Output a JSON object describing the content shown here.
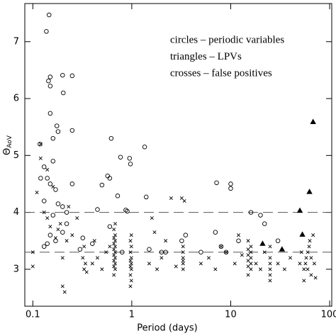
{
  "chart_data": {
    "type": "scatter",
    "xlabel": "Period (days)",
    "ylabel": "Θ",
    "ylabel_sub": "AoV",
    "xscale": "log",
    "xlim": [
      0.083,
      105
    ],
    "ylim": [
      2.35,
      7.67
    ],
    "xticks": [
      0.1,
      1,
      10,
      100
    ],
    "yticks": [
      3,
      4,
      5,
      6,
      7
    ],
    "hlines": [
      4.0,
      3.3
    ],
    "legend": "upper right",
    "series": [
      {
        "name": "circles – periodic variables",
        "color": "#000000",
        "marker": "circle",
        "x": [
          0.146,
          0.137,
          0.144,
          0.15,
          0.2,
          0.25,
          0.203,
          0.15,
          0.15,
          0.175,
          0.18,
          0.25,
          0.62,
          0.77,
          0.57,
          0.6,
          0.5,
          0.95,
          0.97,
          1.35,
          0.72,
          0.45,
          0.87,
          0.9,
          1.4,
          7.2,
          10,
          10,
          0.118,
          0.13,
          0.14,
          0.12,
          0.15,
          0.16,
          0.16,
          0.17,
          0.13,
          0.2,
          0.22,
          0.18,
          0.25,
          0.16,
          0.15,
          0.14,
          0.13,
          0.17,
          0.2,
          0.22,
          0.3,
          0.32,
          0.4,
          0.6,
          0.8,
          1.5,
          2,
          2.2,
          3.5,
          3.2,
          5,
          7,
          8,
          12,
          16,
          20,
          22,
          30,
          9
        ],
        "values": [
          7.47,
          7.18,
          6.31,
          6.38,
          6.41,
          6.4,
          6.1,
          6.22,
          5.74,
          5.52,
          5.42,
          5.44,
          5.3,
          4.97,
          4.64,
          4.6,
          4.48,
          4.95,
          4.85,
          5.15,
          4.29,
          4.05,
          4.04,
          4.02,
          4.27,
          4.52,
          4.5,
          4.42,
          5.2,
          4.8,
          4.6,
          4.6,
          4.5,
          4.9,
          5.3,
          4.4,
          4.2,
          4.1,
          4.0,
          4.15,
          4.5,
          3.95,
          3.6,
          3.45,
          3.4,
          3.5,
          3.65,
          3.8,
          3.35,
          3.55,
          3.45,
          3.75,
          3.3,
          3.35,
          3.3,
          3.3,
          3.6,
          3.5,
          3.3,
          3.65,
          3.4,
          3.5,
          4.0,
          3.95,
          3.8,
          3.5,
          3.3
        ]
      },
      {
        "name": "triangles – LPVs",
        "color": "#000000",
        "marker": "triangle",
        "x": [
          68,
          62.5,
          50,
          53,
          21,
          33
        ],
        "values": [
          5.59,
          4.36,
          4.03,
          3.61,
          3.45,
          3.35
        ]
      },
      {
        "name": "crosses – false positives",
        "color": "#000000",
        "marker": "cross",
        "x": [
          0.12,
          0.11,
          0.12,
          0.13,
          0.1,
          0.1,
          0.14,
          0.15,
          0.17,
          0.18,
          0.19,
          0.2,
          0.21,
          0.2,
          0.22,
          0.16,
          0.14,
          0.23,
          0.25,
          0.28,
          0.32,
          0.33,
          0.34,
          0.35,
          0.33,
          0.4,
          0.45,
          0.42,
          0.5,
          0.55,
          0.6,
          0.66,
          0.68,
          0.66,
          0.68,
          0.66,
          0.68,
          0.66,
          0.68,
          0.66,
          0.68,
          0.66,
          0.68,
          0.66,
          0.68,
          0.66,
          0.68,
          0.97,
          0.99,
          0.97,
          0.99,
          0.97,
          0.99,
          0.97,
          0.99,
          0.97,
          0.99,
          0.97,
          0.99,
          1.5,
          1.6,
          1.8,
          2.0,
          2.5,
          2.2,
          1.7,
          2.8,
          3.3,
          3.3,
          3.3,
          3.3,
          3.3,
          3.3,
          3.2,
          3.4,
          5,
          6,
          7,
          8,
          9,
          11,
          12,
          13,
          15,
          16,
          15,
          16,
          15,
          16,
          15,
          16,
          15,
          16,
          15,
          18,
          20,
          22,
          25,
          25,
          25,
          25,
          25,
          25,
          30,
          35,
          40,
          55,
          55,
          57,
          58,
          60,
          60,
          62,
          63,
          65,
          65,
          68,
          70,
          72,
          52,
          50
        ],
        "values": [
          5.2,
          4.35,
          4.95,
          4.0,
          3.05,
          3.3,
          3.9,
          3.75,
          3.55,
          3.7,
          3.8,
          3.2,
          2.6,
          2.7,
          3.5,
          4.45,
          4.75,
          4.1,
          3.6,
          3.9,
          3.2,
          3.0,
          3.1,
          2.95,
          3.4,
          3.1,
          3.2,
          3.5,
          3.0,
          3.3,
          3.4,
          2.9,
          3.0,
          3.05,
          3.1,
          3.15,
          3.2,
          3.25,
          3.3,
          3.35,
          3.4,
          3.45,
          3.5,
          3.55,
          3.6,
          3.7,
          3.8,
          2.7,
          2.8,
          2.9,
          3.0,
          3.05,
          3.1,
          3.15,
          3.2,
          3.3,
          3.4,
          3.5,
          3.6,
          3.1,
          3.9,
          3.0,
          3.2,
          4.25,
          3.5,
          3.65,
          3.05,
          3.0,
          3.1,
          3.15,
          3.2,
          3.3,
          3.4,
          4.25,
          4.2,
          3.1,
          3.2,
          3.0,
          3.4,
          3.3,
          3.1,
          3.6,
          3.25,
          2.9,
          3.0,
          3.05,
          3.1,
          3.15,
          3.2,
          3.25,
          3.3,
          3.35,
          3.4,
          3.5,
          3.1,
          3.0,
          3.3,
          2.8,
          2.9,
          3.0,
          3.1,
          3.2,
          3.4,
          3.1,
          3.0,
          3.2,
          2.8,
          3.0,
          3.1,
          3.2,
          3.3,
          3.0,
          3.4,
          3.5,
          2.9,
          3.2,
          3.6,
          3.1,
          2.85,
          3.3,
          3.1
        ]
      }
    ]
  }
}
